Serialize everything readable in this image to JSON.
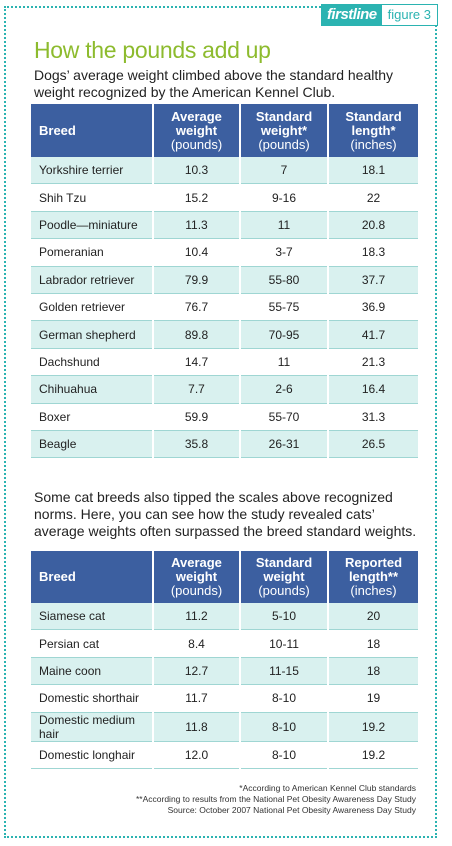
{
  "badge": {
    "brand": "firstline",
    "figure": "figure 3"
  },
  "title": "How the pounds add up",
  "dog_intro": "Dogs’ average weight climbed above the standard healthy weight recognized by the American Kennel Club.",
  "dog_table": {
    "headers": {
      "breed": "Breed",
      "avg_weight": "Average weight",
      "avg_weight_unit": "(pounds)",
      "std_weight": "Standard weight*",
      "std_weight_unit": "(pounds)",
      "length": "Standard length*",
      "length_unit": "(inches)"
    },
    "rows": [
      {
        "breed": "Yorkshire terrier",
        "avg": "10.3",
        "std": "7",
        "len": "18.1"
      },
      {
        "breed": "Shih Tzu",
        "avg": "15.2",
        "std": "9-16",
        "len": "22"
      },
      {
        "breed": "Poodle—miniature",
        "avg": "11.3",
        "std": "11",
        "len": "20.8"
      },
      {
        "breed": "Pomeranian",
        "avg": "10.4",
        "std": "3-7",
        "len": "18.3"
      },
      {
        "breed": "Labrador retriever",
        "avg": "79.9",
        "std": "55-80",
        "len": "37.7"
      },
      {
        "breed": "Golden retriever",
        "avg": "76.7",
        "std": "55-75",
        "len": "36.9"
      },
      {
        "breed": "German shepherd",
        "avg": "89.8",
        "std": "70-95",
        "len": "41.7"
      },
      {
        "breed": "Dachshund",
        "avg": "14.7",
        "std": "11",
        "len": "21.3"
      },
      {
        "breed": "Chihuahua",
        "avg": "7.7",
        "std": "2-6",
        "len": "16.4"
      },
      {
        "breed": "Boxer",
        "avg": "59.9",
        "std": "55-70",
        "len": "31.3"
      },
      {
        "breed": "Beagle",
        "avg": "35.8",
        "std": "26-31",
        "len": "26.5"
      }
    ]
  },
  "cat_intro": "Some cat breeds also tipped the scales above recognized norms. Here, you can see how the study revealed cats’ average weights often surpassed the breed standard weights.",
  "cat_table": {
    "headers": {
      "breed": "Breed",
      "avg_weight": "Average weight",
      "avg_weight_unit": "(pounds)",
      "std_weight": "Standard weight",
      "std_weight_unit": "(pounds)",
      "length": "Reported length**",
      "length_unit": "(inches)"
    },
    "rows": [
      {
        "breed": "Siamese cat",
        "avg": "11.2",
        "std": "5-10",
        "len": "20"
      },
      {
        "breed": "Persian cat",
        "avg": "8.4",
        "std": "10-11",
        "len": "18"
      },
      {
        "breed": "Maine coon",
        "avg": "12.7",
        "std": "11-15",
        "len": "18"
      },
      {
        "breed": "Domestic shorthair",
        "avg": "11.7",
        "std": "8-10",
        "len": "19"
      },
      {
        "breed": "Domestic medium hair",
        "avg": "11.8",
        "std": "8-10",
        "len": "19.2"
      },
      {
        "breed": "Domestic longhair",
        "avg": "12.0",
        "std": "8-10",
        "len": "19.2"
      }
    ]
  },
  "footnotes": [
    "*According to American Kennel Club standards",
    "**According to results from the National Pet Obesity Awareness Day Study",
    "Source: October 2007 National Pet Obesity Awareness Day Study"
  ],
  "colors": {
    "title_green": "#8dbb2e",
    "header_blue": "#3c5fa0",
    "row_tint": "#d9f1ef",
    "teal_accent": "#2bb3b1"
  }
}
